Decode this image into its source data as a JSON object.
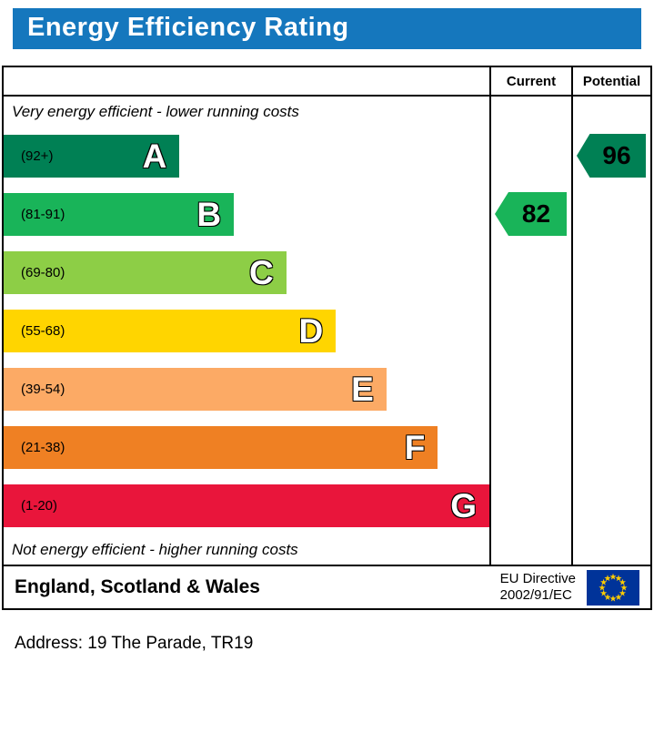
{
  "title": "Energy Efficiency Rating",
  "columns": {
    "current": "Current",
    "potential": "Potential"
  },
  "notes": {
    "top": "Very energy efficient - lower running costs",
    "bottom": "Not energy efficient - higher running costs"
  },
  "bands": [
    {
      "letter": "A",
      "range": "(92+)",
      "color": "#008054",
      "width_pct": 36.2
    },
    {
      "letter": "B",
      "range": "(81-91)",
      "color": "#19b459",
      "width_pct": 47.4
    },
    {
      "letter": "C",
      "range": "(69-80)",
      "color": "#8dce46",
      "width_pct": 58.2
    },
    {
      "letter": "D",
      "range": "(55-68)",
      "color": "#ffd500",
      "width_pct": 68.4
    },
    {
      "letter": "E",
      "range": "(39-54)",
      "color": "#fcaa65",
      "width_pct": 78.8
    },
    {
      "letter": "F",
      "range": "(21-38)",
      "color": "#ef8023",
      "width_pct": 89.4
    },
    {
      "letter": "G",
      "range": "(1-20)",
      "color": "#e9153b",
      "width_pct": 100
    }
  ],
  "ratings": {
    "current": {
      "value": "82",
      "color": "#19b459",
      "band_index": 1
    },
    "potential": {
      "value": "96",
      "color": "#008054",
      "band_index": 0
    }
  },
  "footer": {
    "region": "England, Scotland & Wales",
    "directive_line1": "EU Directive",
    "directive_line2": "2002/91/EC"
  },
  "address": "Address: 19 The Parade, TR19",
  "colors": {
    "title_bg": "#1577bd",
    "eu_flag_bg": "#003399",
    "eu_star": "#ffcc00"
  },
  "chart_data": {
    "type": "bar",
    "title": "Energy Efficiency Rating",
    "categories": [
      "A",
      "B",
      "C",
      "D",
      "E",
      "F",
      "G"
    ],
    "band_ranges": [
      "92+",
      "81-91",
      "69-80",
      "55-68",
      "39-54",
      "21-38",
      "1-20"
    ],
    "band_colors": [
      "#008054",
      "#19b459",
      "#8dce46",
      "#ffd500",
      "#fcaa65",
      "#ef8023",
      "#e9153b"
    ],
    "current_rating": 82,
    "current_band": "B",
    "potential_rating": 96,
    "potential_band": "A",
    "region": "England, Scotland & Wales",
    "legend_position": "none",
    "notes": [
      "Very energy efficient - lower running costs",
      "Not energy efficient - higher running costs"
    ]
  }
}
